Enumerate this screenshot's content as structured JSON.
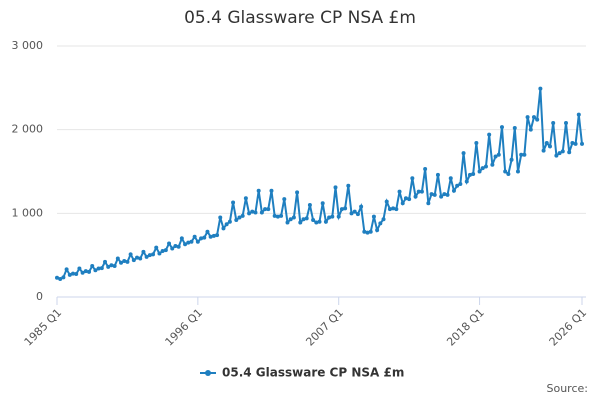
{
  "chart_data": {
    "type": "line",
    "title": "05.4 Glassware CP NSA £m",
    "categories": [
      "1985 Q1",
      null,
      null,
      null,
      null,
      null,
      null,
      null,
      null,
      null,
      null,
      null,
      null,
      null,
      null,
      null,
      null,
      null,
      null,
      null,
      null,
      null,
      null,
      null,
      null,
      null,
      null,
      null,
      null,
      null,
      null,
      null,
      null,
      null,
      null,
      null,
      null,
      null,
      null,
      null,
      null,
      null,
      null,
      null,
      "1996 Q1",
      null,
      null,
      null,
      null,
      null,
      null,
      null,
      null,
      null,
      null,
      null,
      null,
      null,
      null,
      null,
      null,
      null,
      null,
      null,
      null,
      null,
      null,
      null,
      null,
      null,
      null,
      null,
      null,
      null,
      null,
      null,
      null,
      null,
      null,
      null,
      null,
      null,
      null,
      null,
      null,
      null,
      null,
      null,
      "2007 Q1",
      null,
      null,
      null,
      null,
      null,
      null,
      null,
      null,
      null,
      null,
      null,
      null,
      null,
      null,
      null,
      null,
      null,
      null,
      null,
      null,
      null,
      null,
      null,
      null,
      null,
      null,
      null,
      null,
      null,
      null,
      null,
      null,
      null,
      null,
      null,
      null,
      null,
      null,
      null,
      null,
      null,
      null,
      null,
      "2018 Q1",
      null,
      null,
      null,
      null,
      null,
      null,
      null,
      null,
      null,
      null,
      null,
      null,
      null,
      null,
      null,
      null,
      null,
      null,
      null,
      null,
      null,
      null,
      null,
      null,
      null,
      null,
      null,
      null,
      null,
      null,
      null,
      "2026 Q1"
    ],
    "series": [
      {
        "name": "05.4 Glassware CP NSA £m",
        "color": "#1f7fc0",
        "values": [
          230,
          215,
          235,
          330,
          265,
          280,
          275,
          340,
          290,
          310,
          300,
          370,
          320,
          340,
          345,
          420,
          360,
          380,
          370,
          460,
          410,
          430,
          420,
          510,
          440,
          470,
          460,
          540,
          480,
          500,
          510,
          590,
          520,
          550,
          560,
          640,
          580,
          610,
          600,
          700,
          630,
          650,
          660,
          720,
          660,
          700,
          710,
          780,
          720,
          730,
          740,
          950,
          820,
          870,
          900,
          1130,
          920,
          950,
          970,
          1180,
          1000,
          1020,
          1010,
          1270,
          1010,
          1050,
          1050,
          1270,
          970,
          960,
          970,
          1170,
          890,
          930,
          950,
          1250,
          890,
          930,
          940,
          1100,
          920,
          890,
          900,
          1120,
          900,
          950,
          960,
          1310,
          960,
          1050,
          1060,
          1330,
          1000,
          1020,
          990,
          1080,
          780,
          770,
          780,
          960,
          800,
          880,
          930,
          1140,
          1050,
          1060,
          1050,
          1260,
          1120,
          1180,
          1170,
          1420,
          1200,
          1260,
          1260,
          1530,
          1120,
          1230,
          1220,
          1460,
          1200,
          1230,
          1220,
          1420,
          1270,
          1330,
          1350,
          1720,
          1380,
          1460,
          1470,
          1840,
          1500,
          1540,
          1560,
          1940,
          1580,
          1680,
          1700,
          2030,
          1500,
          1470,
          1640,
          2020,
          1500,
          1700,
          1700,
          2150,
          2000,
          2150,
          2120,
          2490,
          1750,
          1840,
          1800,
          2080,
          1690,
          1720,
          1740,
          2080,
          1730,
          1840,
          1830,
          2180,
          1830
        ]
      }
    ],
    "ylim": [
      0,
      3000
    ],
    "yticks": [
      0,
      {
        "value": 1000,
        "label": "1 000"
      },
      {
        "value": 2000,
        "label": "2 000"
      },
      {
        "value": 3000,
        "label": "3 000"
      }
    ],
    "grid": true,
    "source_label": "Source:"
  }
}
